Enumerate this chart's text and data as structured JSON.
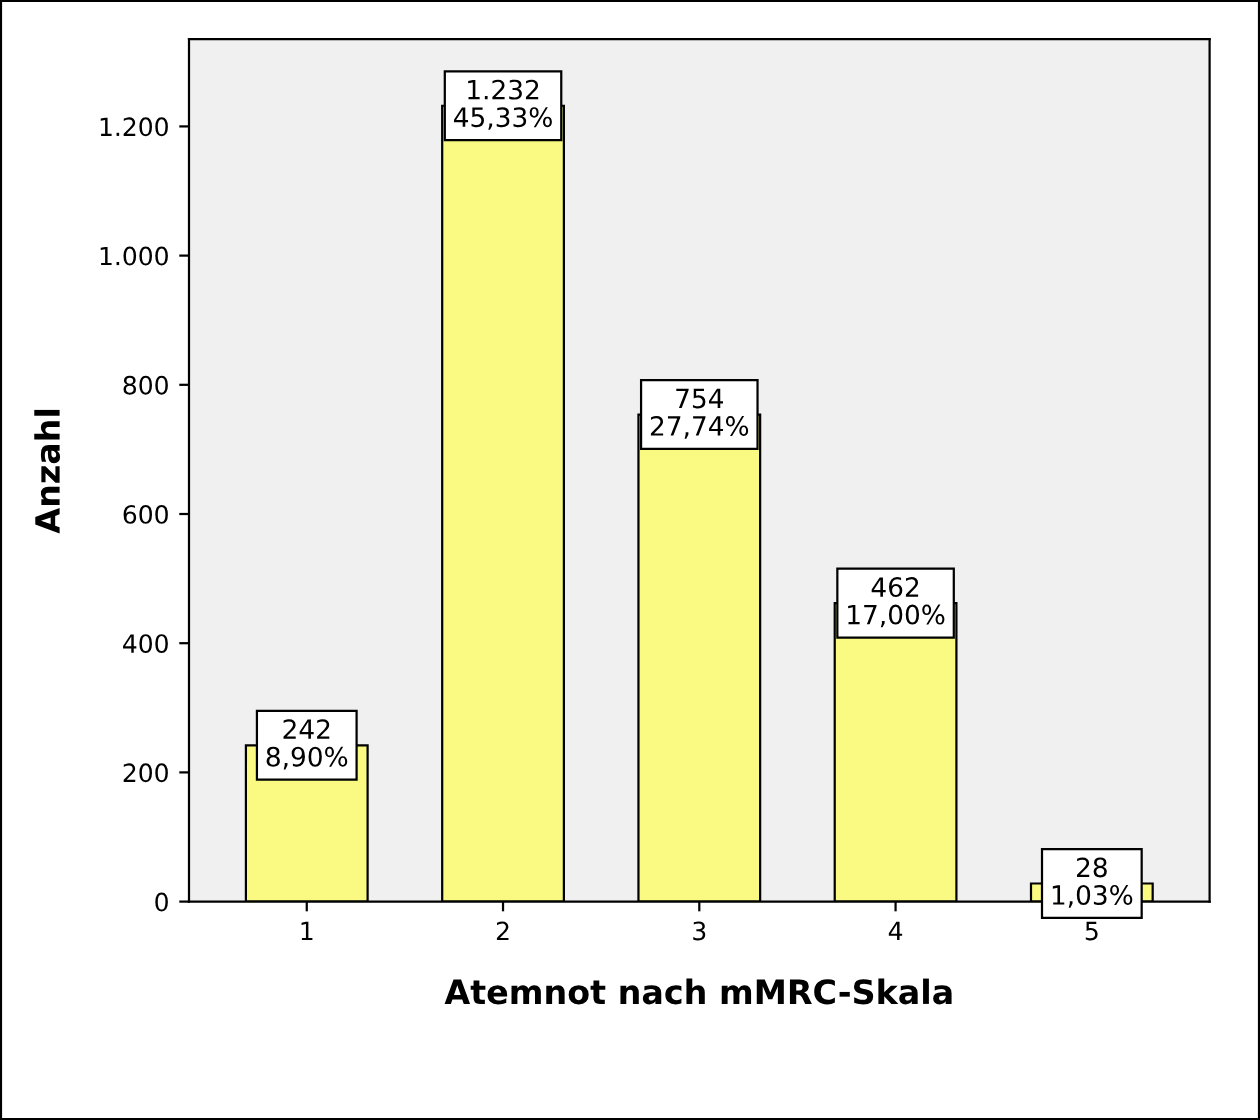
{
  "chart_data": {
    "type": "bar",
    "categories": [
      "1",
      "2",
      "3",
      "4",
      "5"
    ],
    "values": [
      242,
      1232,
      754,
      462,
      28
    ],
    "value_labels": [
      "242\n8,90%",
      "1.232\n45,33%",
      "754\n27,74%",
      "462\n17,00%",
      "28\n1,03%"
    ],
    "color": "#fafa82",
    "xlabel": "Atemnot nach mMRC-Skala",
    "ylabel": "Anzahl",
    "ylim": [
      0,
      1335
    ],
    "yticks": [
      0,
      200,
      400,
      600,
      800,
      {
        "value": 1000,
        "label": "1.000"
      },
      {
        "value": 1200,
        "label": "1.200"
      }
    ],
    "grid": false,
    "legend": false
  }
}
